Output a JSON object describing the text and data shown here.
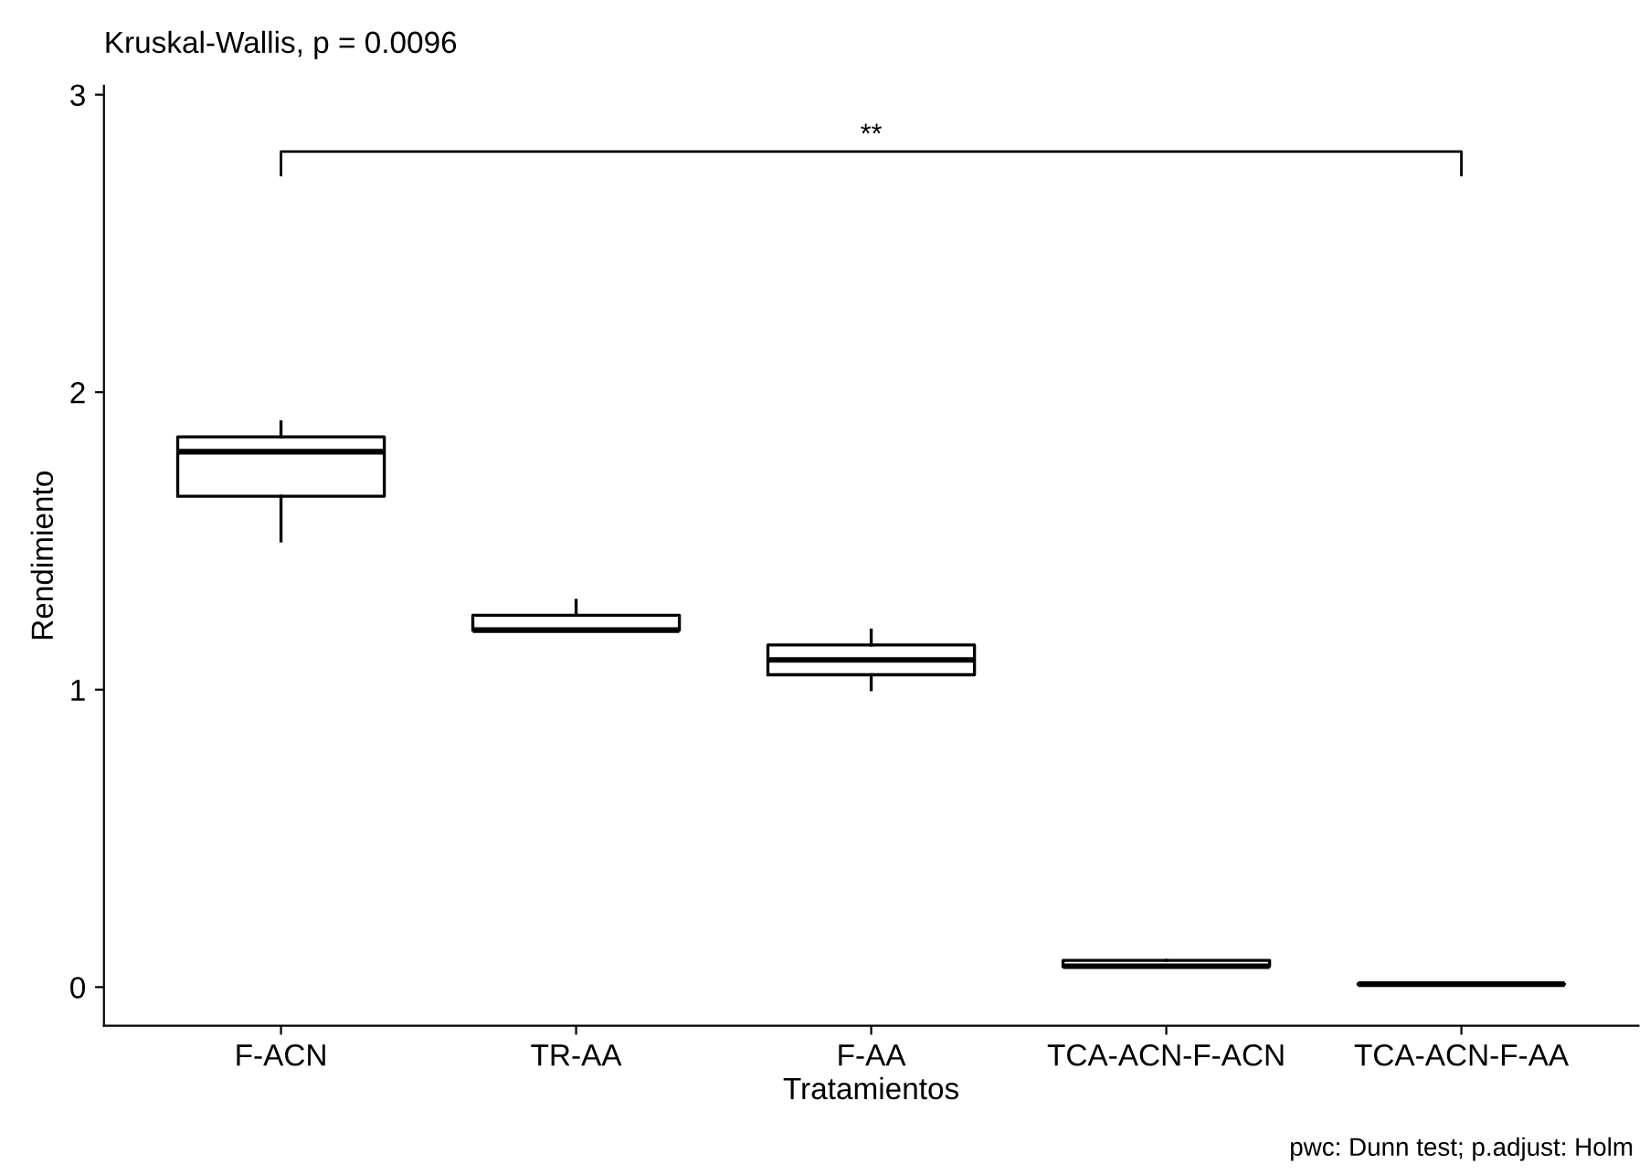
{
  "chart_data": {
    "type": "box",
    "title": "Kruskal-Wallis, p = 0.0096",
    "xlabel": "Tratamientos",
    "ylabel": "Rendimiento",
    "categories": [
      "F-ACN",
      "TR-AA",
      "F-AA",
      "TCA-ACN-F-ACN",
      "TCA-ACN-F-AA"
    ],
    "boxes": [
      {
        "low": 1.5,
        "q1": 1.65,
        "median": 1.8,
        "q3": 1.85,
        "high": 1.9
      },
      {
        "low": 1.2,
        "q1": 1.2,
        "median": 1.2,
        "q3": 1.25,
        "high": 1.3
      },
      {
        "low": 1.0,
        "q1": 1.05,
        "median": 1.1,
        "q3": 1.15,
        "high": 1.2
      },
      {
        "low": 0.07,
        "q1": 0.07,
        "median": 0.07,
        "q3": 0.09,
        "high": 0.09
      },
      {
        "low": 0.01,
        "q1": 0.01,
        "median": 0.01,
        "q3": 0.01,
        "high": 0.01
      }
    ],
    "ylim": [
      -0.13,
      3.03
    ],
    "yticks": [
      0,
      1,
      2,
      3
    ],
    "grid": false,
    "annotations": [
      "**",
      "pwc: Dunn test; p.adjust: Holm"
    ]
  }
}
